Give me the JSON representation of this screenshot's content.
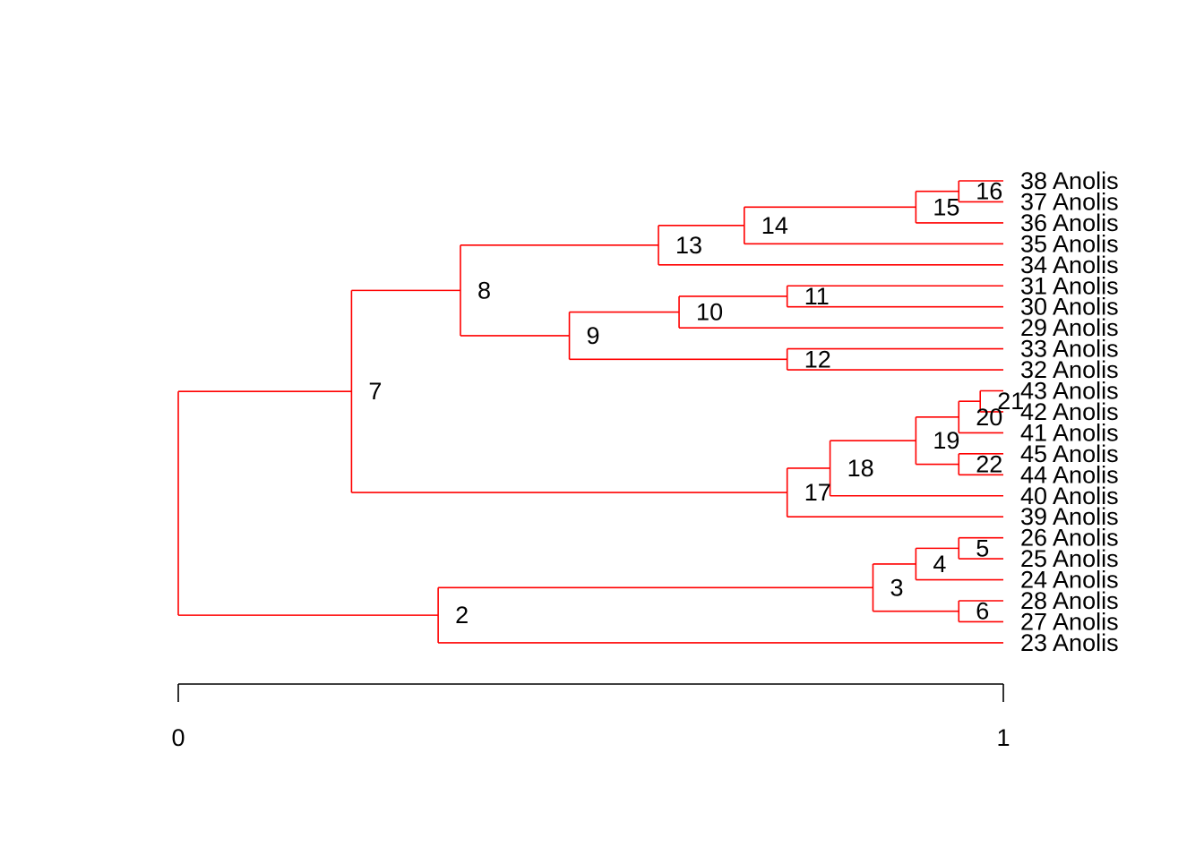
{
  "tree": {
    "branch_color": "#ff0000",
    "axis_color": "#000000",
    "axis": {
      "range": [
        0,
        1
      ],
      "ticks": [
        {
          "value": 0,
          "label": "0"
        },
        {
          "value": 1,
          "label": "1"
        }
      ]
    },
    "leaves": [
      {
        "id": "L38",
        "label": "38 Anolis"
      },
      {
        "id": "L37",
        "label": "37 Anolis"
      },
      {
        "id": "L36",
        "label": "36 Anolis"
      },
      {
        "id": "L35",
        "label": "35 Anolis"
      },
      {
        "id": "L34",
        "label": "34 Anolis"
      },
      {
        "id": "L31",
        "label": "31 Anolis"
      },
      {
        "id": "L30",
        "label": "30 Anolis"
      },
      {
        "id": "L29",
        "label": "29 Anolis"
      },
      {
        "id": "L33",
        "label": "33 Anolis"
      },
      {
        "id": "L32",
        "label": "32 Anolis"
      },
      {
        "id": "L43",
        "label": "43 Anolis"
      },
      {
        "id": "L42",
        "label": "42 Anolis"
      },
      {
        "id": "L41",
        "label": "41 Anolis"
      },
      {
        "id": "L45",
        "label": "45 Anolis"
      },
      {
        "id": "L44",
        "label": "44 Anolis"
      },
      {
        "id": "L40",
        "label": "40 Anolis"
      },
      {
        "id": "L39",
        "label": "39 Anolis"
      },
      {
        "id": "L26",
        "label": "26 Anolis"
      },
      {
        "id": "L25",
        "label": "25 Anolis"
      },
      {
        "id": "L24",
        "label": "24 Anolis"
      },
      {
        "id": "L28",
        "label": "28 Anolis"
      },
      {
        "id": "L27",
        "label": "27 Anolis"
      },
      {
        "id": "L23",
        "label": "23 Anolis"
      }
    ],
    "nodes": [
      {
        "id": "N1",
        "label": "",
        "depth": 0.0,
        "children": [
          "N7",
          "N2"
        ]
      },
      {
        "id": "N7",
        "label": "7",
        "depth": 0.21,
        "children": [
          "N8",
          "N17"
        ]
      },
      {
        "id": "N8",
        "label": "8",
        "depth": 0.342,
        "children": [
          "N13",
          "N9"
        ]
      },
      {
        "id": "N13",
        "label": "13",
        "depth": 0.582,
        "children": [
          "N14",
          "L34"
        ]
      },
      {
        "id": "N14",
        "label": "14",
        "depth": 0.686,
        "children": [
          "N15",
          "L35"
        ]
      },
      {
        "id": "N15",
        "label": "15",
        "depth": 0.894,
        "children": [
          "N16",
          "L36"
        ]
      },
      {
        "id": "N16",
        "label": "16",
        "depth": 0.946,
        "children": [
          "L38",
          "L37"
        ]
      },
      {
        "id": "N9",
        "label": "9",
        "depth": 0.474,
        "children": [
          "N10",
          "N12"
        ]
      },
      {
        "id": "N10",
        "label": "10",
        "depth": 0.607,
        "children": [
          "N11",
          "L29"
        ]
      },
      {
        "id": "N11",
        "label": "11",
        "depth": 0.738,
        "children": [
          "L31",
          "L30"
        ]
      },
      {
        "id": "N12",
        "label": "12",
        "depth": 0.738,
        "children": [
          "L33",
          "L32"
        ]
      },
      {
        "id": "N17",
        "label": "17",
        "depth": 0.738,
        "children": [
          "N18",
          "L39"
        ]
      },
      {
        "id": "N18",
        "label": "18",
        "depth": 0.79,
        "children": [
          "N19",
          "L40"
        ]
      },
      {
        "id": "N19",
        "label": "19",
        "depth": 0.894,
        "children": [
          "N20",
          "N22"
        ]
      },
      {
        "id": "N20",
        "label": "20",
        "depth": 0.946,
        "children": [
          "N21",
          "L41"
        ]
      },
      {
        "id": "N21",
        "label": "21",
        "depth": 0.972,
        "children": [
          "L43",
          "L42"
        ]
      },
      {
        "id": "N22",
        "label": "22",
        "depth": 0.946,
        "children": [
          "L45",
          "L44"
        ]
      },
      {
        "id": "N2",
        "label": "2",
        "depth": 0.315,
        "children": [
          "N3",
          "L23"
        ]
      },
      {
        "id": "N3",
        "label": "3",
        "depth": 0.842,
        "children": [
          "N4",
          "N6"
        ]
      },
      {
        "id": "N4",
        "label": "4",
        "depth": 0.894,
        "children": [
          "N5",
          "L24"
        ]
      },
      {
        "id": "N5",
        "label": "5",
        "depth": 0.946,
        "children": [
          "L26",
          "L25"
        ]
      },
      {
        "id": "N6",
        "label": "6",
        "depth": 0.946,
        "children": [
          "L28",
          "L27"
        ]
      }
    ]
  }
}
